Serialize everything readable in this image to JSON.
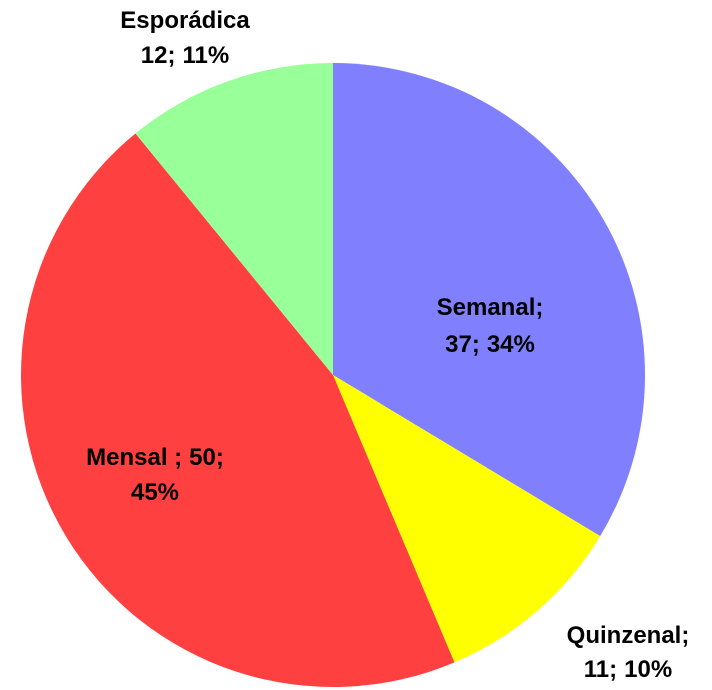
{
  "chart_data": {
    "type": "pie",
    "categories": [
      "Semanal;",
      "Quinzenal;",
      "Mensal ;",
      "Esporádica"
    ],
    "values": [
      37,
      11,
      50,
      12
    ],
    "value_labels": [
      "37;",
      "11;",
      "50;",
      "12;"
    ],
    "percent_labels": [
      "34%",
      "10%",
      "45%",
      "11%"
    ],
    "colors": [
      "#8080ff",
      "#ffff00",
      "#ff4040",
      "#99ff99"
    ]
  }
}
